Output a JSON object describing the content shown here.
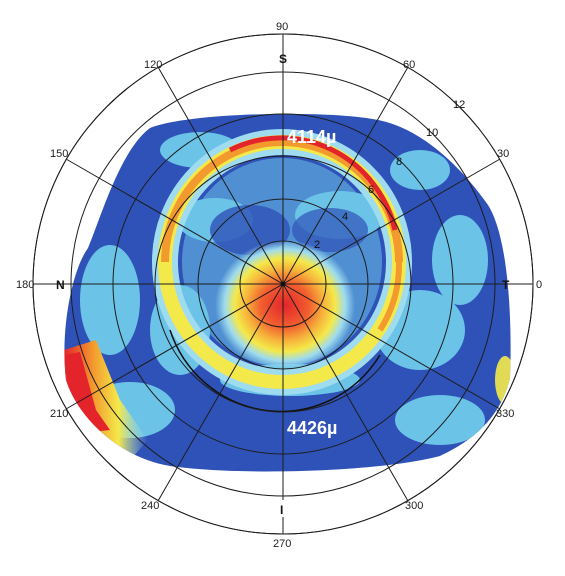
{
  "map": {
    "degree_labels": [
      "0",
      "30",
      "60",
      "90",
      "120",
      "150",
      "180",
      "210",
      "240",
      "270",
      "300",
      "330"
    ],
    "direction_labels": {
      "superior": "S",
      "nasal": "N",
      "temporal": "T",
      "inferior": "I"
    },
    "ring_labels": [
      "2",
      "4",
      "6",
      "8",
      "10",
      "12"
    ],
    "annotations": {
      "top_thickness": "4114µ",
      "bottom_thickness": "4426µ"
    },
    "colors": {
      "background_blue": "#2f52b8",
      "light_blue": "#6bc3e8",
      "cyan": "#9fdcef",
      "yellow": "#f4e94a",
      "orange": "#f39a2e",
      "red": "#e3242b",
      "grid": "#1d1d1d"
    }
  }
}
